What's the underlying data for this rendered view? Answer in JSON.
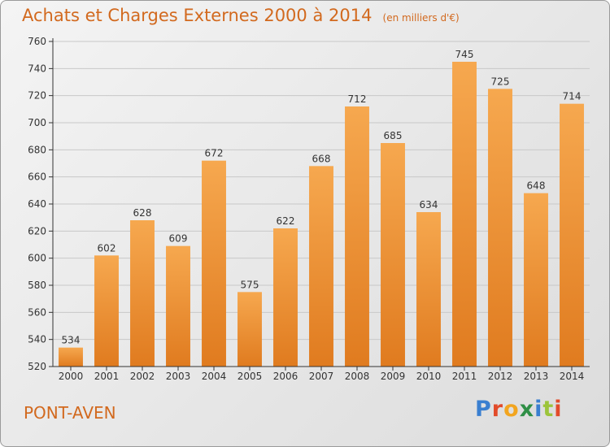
{
  "title": {
    "main": "Achats et Charges Externes 2000 à 2014",
    "unit": "(en milliers d'€)"
  },
  "location": "PONT-AVEN",
  "logo": {
    "text": "Proxiti",
    "letter_colors": [
      "#3a7fd0",
      "#e24b2a",
      "#f2a51f",
      "#2f8f46",
      "#3a7fd0",
      "#9cc43b",
      "#e24b2a"
    ]
  },
  "colors": {
    "bar_top": "#f6a84f",
    "bar_bottom": "#e07b1f",
    "axis": "#333333",
    "grid": "#c8c8c8",
    "title": "#d2691e"
  },
  "chart_data": {
    "type": "bar",
    "title": "Achats et Charges Externes 2000 à 2014",
    "subtitle": "(en milliers d'€)",
    "xlabel": "",
    "ylabel": "",
    "categories": [
      "2000",
      "2001",
      "2002",
      "2003",
      "2004",
      "2005",
      "2006",
      "2007",
      "2008",
      "2009",
      "2010",
      "2011",
      "2012",
      "2013",
      "2014"
    ],
    "values": [
      534,
      602,
      628,
      609,
      672,
      575,
      622,
      668,
      712,
      685,
      634,
      745,
      725,
      648,
      714
    ],
    "ylim": [
      520,
      760
    ],
    "yticks": [
      520,
      540,
      560,
      580,
      600,
      620,
      640,
      660,
      680,
      700,
      720,
      740,
      760
    ],
    "grid": true,
    "data_labels": true
  }
}
